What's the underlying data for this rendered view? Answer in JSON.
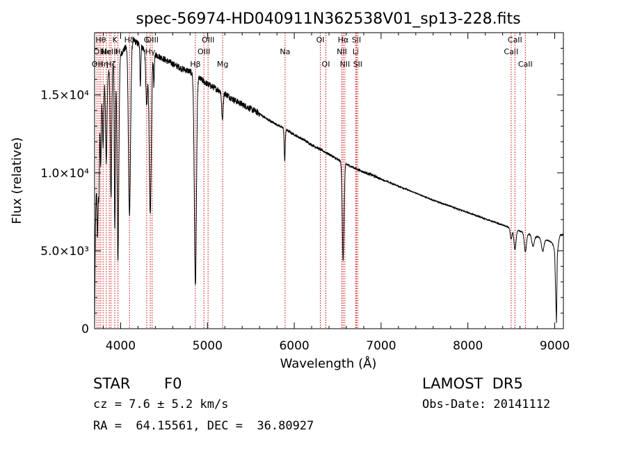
{
  "chart_data": {
    "type": "line",
    "title": "spec-56974-HD040911N362538V01_sp13-228.fits",
    "xlabel": "Wavelength (Å)",
    "ylabel": "Flux (relative)",
    "xlim": [
      3700,
      9100
    ],
    "ylim": [
      0,
      19000
    ],
    "x_ticks": [
      4000,
      5000,
      6000,
      7000,
      8000,
      9000
    ],
    "x_tick_labels": [
      "4000",
      "5000",
      "6000",
      "7000",
      "8000",
      "9000"
    ],
    "y_ticks": [
      0,
      5000,
      10000,
      15000
    ],
    "y_tick_labels": [
      "0",
      "5.0×10³",
      "1.0×10⁴",
      "1.5×10⁴"
    ],
    "grid": false,
    "legend": "none",
    "line_color": "#000000",
    "marker_color": "#cc0000",
    "continuum": [
      [
        3700,
        200
      ],
      [
        3710,
        6500
      ],
      [
        3730,
        11500
      ],
      [
        3760,
        14500
      ],
      [
        3800,
        15800
      ],
      [
        3850,
        16300
      ],
      [
        3900,
        17000
      ],
      [
        3950,
        17300
      ],
      [
        4000,
        17600
      ],
      [
        4050,
        18000
      ],
      [
        4100,
        18300
      ],
      [
        4150,
        18500
      ],
      [
        4200,
        18300
      ],
      [
        4300,
        17800
      ],
      [
        4400,
        17600
      ],
      [
        4500,
        17300
      ],
      [
        4600,
        17000
      ],
      [
        4700,
        16700
      ],
      [
        4800,
        16500
      ],
      [
        4900,
        16100
      ],
      [
        5000,
        15700
      ],
      [
        5100,
        15400
      ],
      [
        5200,
        15100
      ],
      [
        5300,
        14700
      ],
      [
        5400,
        14400
      ],
      [
        5500,
        14100
      ],
      [
        5600,
        13800
      ],
      [
        5700,
        13400
      ],
      [
        5800,
        13100
      ],
      [
        5900,
        12800
      ],
      [
        6000,
        12450
      ],
      [
        6100,
        12150
      ],
      [
        6200,
        11800
      ],
      [
        6300,
        11500
      ],
      [
        6400,
        11200
      ],
      [
        6500,
        10850
      ],
      [
        6600,
        10550
      ],
      [
        6700,
        10300
      ],
      [
        6800,
        10050
      ],
      [
        6900,
        9850
      ],
      [
        7000,
        9600
      ],
      [
        7200,
        9150
      ],
      [
        7400,
        8700
      ],
      [
        7600,
        8250
      ],
      [
        7800,
        7850
      ],
      [
        8000,
        7450
      ],
      [
        8200,
        7050
      ],
      [
        8400,
        6650
      ],
      [
        8600,
        6250
      ],
      [
        8800,
        5900
      ],
      [
        8950,
        5600
      ],
      [
        9000,
        5300
      ],
      [
        9020,
        1200
      ],
      [
        9030,
        5200
      ],
      [
        9060,
        6000
      ],
      [
        9100,
        6050
      ]
    ],
    "absorption_lines": [
      {
        "x": 3734,
        "depth": 6000,
        "width": 6
      },
      {
        "x": 3750,
        "depth": 5000,
        "width": 6
      },
      {
        "x": 3771,
        "depth": 4500,
        "width": 6
      },
      {
        "x": 3798,
        "depth": 4000,
        "width": 7
      },
      {
        "x": 3835,
        "depth": 5500,
        "width": 8
      },
      {
        "x": 3889,
        "depth": 8500,
        "width": 8
      },
      {
        "x": 3933,
        "depth": 11000,
        "width": 6
      },
      {
        "x": 3969,
        "depth": 13000,
        "width": 10
      },
      {
        "x": 4102,
        "depth": 11000,
        "width": 12
      },
      {
        "x": 4227,
        "depth": 2500,
        "width": 5
      },
      {
        "x": 4300,
        "depth": 3500,
        "width": 10
      },
      {
        "x": 4341,
        "depth": 10500,
        "width": 12
      },
      {
        "x": 4383,
        "depth": 2000,
        "width": 5
      },
      {
        "x": 4861,
        "depth": 13500,
        "width": 12
      },
      {
        "x": 5172,
        "depth": 1800,
        "width": 8
      },
      {
        "x": 5890,
        "depth": 2000,
        "width": 6
      },
      {
        "x": 6563,
        "depth": 6300,
        "width": 10
      },
      {
        "x": 8498,
        "depth": 700,
        "width": 10
      },
      {
        "x": 8542,
        "depth": 1300,
        "width": 12
      },
      {
        "x": 8662,
        "depth": 1200,
        "width": 12
      },
      {
        "x": 8750,
        "depth": 700,
        "width": 14
      },
      {
        "x": 8862,
        "depth": 800,
        "width": 14
      },
      {
        "x": 9015,
        "depth": 900,
        "width": 14
      }
    ],
    "line_markers": [
      {
        "x": 3727,
        "label": "OII",
        "row": 2
      },
      {
        "x": 3750,
        "label": "OII",
        "row": 1
      },
      {
        "x": 3771,
        "label": "Hθ",
        "row": 0
      },
      {
        "x": 3798,
        "label": "Hη",
        "row": 2
      },
      {
        "x": 3835,
        "label": "Hε",
        "row": 1
      },
      {
        "x": 3869,
        "label": "NeIII",
        "row": 1
      },
      {
        "x": 3889,
        "label": "Hζ",
        "row": 2
      },
      {
        "x": 3933,
        "label": "K",
        "row": 0
      },
      {
        "x": 3969,
        "label": "H",
        "row": 1
      },
      {
        "x": 4102,
        "label": "Hδ",
        "row": 0
      },
      {
        "x": 4300,
        "label": "G",
        "row": 0
      },
      {
        "x": 4341,
        "label": "Hγ",
        "row": 1
      },
      {
        "x": 4363,
        "label": "OIII",
        "row": 0
      },
      {
        "x": 4861,
        "label": "Hβ",
        "row": 2
      },
      {
        "x": 4959,
        "label": "OIII",
        "row": 1
      },
      {
        "x": 5007,
        "label": "OIII",
        "row": 0
      },
      {
        "x": 5175,
        "label": "Mg",
        "row": 2
      },
      {
        "x": 5894,
        "label": "Na",
        "row": 1
      },
      {
        "x": 6300,
        "label": "OI",
        "row": 0
      },
      {
        "x": 6364,
        "label": "OI",
        "row": 2
      },
      {
        "x": 6548,
        "label": "NII",
        "row": 1
      },
      {
        "x": 6563,
        "label": "Hα",
        "row": 0
      },
      {
        "x": 6583,
        "label": "NII",
        "row": 2
      },
      {
        "x": 6707,
        "label": "Li",
        "row": 1
      },
      {
        "x": 6716,
        "label": "SII",
        "row": 0
      },
      {
        "x": 6731,
        "label": "SII",
        "row": 2
      },
      {
        "x": 8498,
        "label": "CaII",
        "row": 1
      },
      {
        "x": 8542,
        "label": "CaII",
        "row": 0
      },
      {
        "x": 8662,
        "label": "CaII",
        "row": 2
      }
    ]
  },
  "info": {
    "object_class": "STAR",
    "subclass": "F0",
    "survey": "LAMOST  DR5",
    "redshift": "cz = 7.6 ± 5.2 km/s",
    "obs_date": "Obs-Date: 20141112",
    "coords": "RA =  64.15561, DEC =  36.80927"
  }
}
